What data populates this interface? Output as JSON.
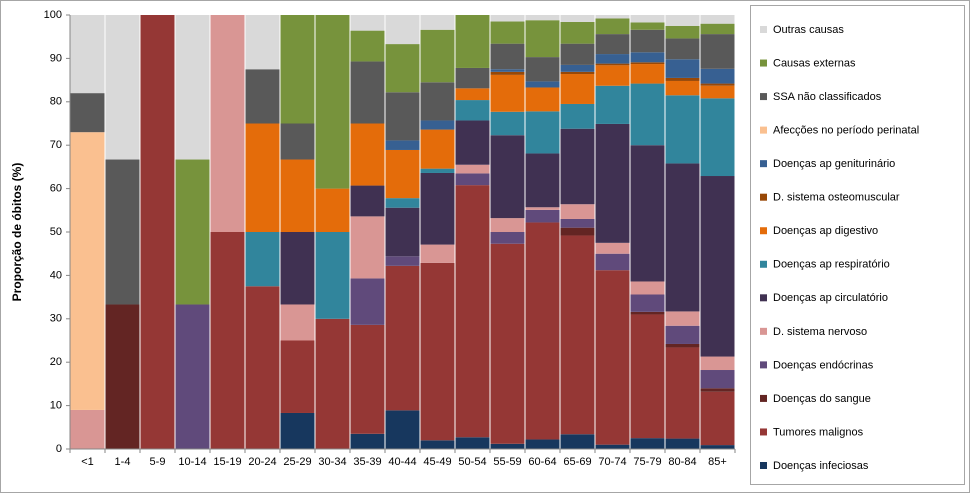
{
  "chart_data": {
    "type": "stacked_bar",
    "ylabel": "Proporção de óbitos (%)",
    "categories": [
      "<1",
      "1-4",
      "5-9",
      "10-14",
      "15-19",
      "20-24",
      "25-29",
      "30-34",
      "35-39",
      "40-44",
      "45-49",
      "50-54",
      "55-59",
      "60-64",
      "65-69",
      "70-74",
      "75-79",
      "80-84",
      "85+"
    ],
    "ylim": [
      0,
      100
    ],
    "yticks": [
      0,
      10,
      20,
      30,
      40,
      50,
      60,
      70,
      80,
      90,
      100
    ],
    "grid": false,
    "legend": "right",
    "series": [
      {
        "name": "Doenças infeciosas",
        "color": "#17375e",
        "values": [
          0,
          0,
          0,
          0,
          0,
          0,
          8.3,
          0,
          3.5,
          8.9,
          2,
          2.7,
          1.2,
          2.2,
          3.4,
          1,
          2.5,
          2.4,
          0.9
        ]
      },
      {
        "name": "Tumores malignos",
        "color": "#953735",
        "values": [
          0,
          0,
          100,
          0,
          50,
          37.5,
          16.7,
          30,
          25.1,
          33.3,
          40.9,
          58.1,
          46.1,
          50,
          45.8,
          40.2,
          28.5,
          21,
          12.3
        ]
      },
      {
        "name": "Doenças do sangue",
        "color": "#632523",
        "values": [
          0,
          33.3,
          0,
          0,
          0,
          0,
          0,
          0,
          0,
          0,
          0,
          0,
          0,
          0,
          1.8,
          0,
          0.6,
          0.8,
          0.8
        ]
      },
      {
        "name": "Doenças endócrinas",
        "color": "#604a7b",
        "values": [
          0,
          0,
          0,
          33.3,
          0,
          0,
          0,
          0,
          10.7,
          2.2,
          0,
          2.7,
          2.7,
          2.9,
          2,
          3.8,
          4,
          4.2,
          4.2
        ]
      },
      {
        "name": "D. sistema nervoso",
        "color": "#d99694",
        "values": [
          9,
          0,
          0,
          0,
          50,
          0,
          8.3,
          0,
          14.3,
          0,
          4.2,
          2,
          3.2,
          0.6,
          3.4,
          2.5,
          3,
          3.3,
          3.1
        ]
      },
      {
        "name": "Doenças ap circulatório",
        "color": "#403152",
        "values": [
          0,
          0,
          0,
          0,
          0,
          0,
          16.7,
          0,
          7.1,
          11.2,
          16.5,
          10.2,
          19.1,
          12.4,
          17.4,
          27.4,
          31.4,
          34.1,
          41.6
        ]
      },
      {
        "name": "Doenças ap respiratório",
        "color": "#31859c",
        "values": [
          0,
          0,
          0,
          0,
          0,
          12.5,
          0,
          20,
          0,
          2.2,
          1,
          4.7,
          5.4,
          9.7,
          5.7,
          8.8,
          14.2,
          15.7,
          17.9
        ]
      },
      {
        "name": "Doenças ap digestivo",
        "color": "#e46c0a",
        "values": [
          0,
          0,
          0,
          0,
          0,
          25,
          16.7,
          10,
          14.3,
          11.1,
          9,
          2.7,
          8.5,
          5.5,
          6.9,
          4.7,
          4.5,
          3.3,
          2.9
        ]
      },
      {
        "name": "D. sistema osteomuscular",
        "color": "#984807",
        "values": [
          0,
          0,
          0,
          0,
          0,
          0,
          0,
          0,
          0,
          0,
          0,
          0,
          0.7,
          0,
          0.5,
          0.4,
          0.4,
          0.7,
          0.5
        ]
      },
      {
        "name": "Doenças ap geniturinário",
        "color": "#376092",
        "values": [
          0,
          0,
          0,
          0,
          0,
          0,
          0,
          0,
          0,
          2.2,
          2.1,
          0,
          0.6,
          1.4,
          1.6,
          2.2,
          2.3,
          4.3,
          3.4
        ]
      },
      {
        "name": "Afecções no período perinatal",
        "color": "#fac090",
        "values": [
          64,
          0,
          0,
          0,
          0,
          0,
          0,
          0,
          0,
          0,
          0,
          0,
          0,
          0,
          0,
          0,
          0,
          0,
          0
        ]
      },
      {
        "name": "SSA não classificados",
        "color": "#595959",
        "values": [
          9,
          33.4,
          0,
          0,
          0,
          12.5,
          8.3,
          0,
          14.3,
          11.1,
          8.8,
          4.7,
          5.9,
          5.6,
          4.9,
          4.6,
          5.2,
          4.8,
          8
        ]
      },
      {
        "name": "Causas externas",
        "color": "#77933c",
        "values": [
          0,
          0,
          0,
          33.4,
          0,
          0,
          25,
          40,
          7.1,
          11.1,
          12.1,
          12.2,
          5.1,
          8.5,
          5,
          3.6,
          1.7,
          2.9,
          2.4
        ]
      },
      {
        "name": "Outras causas",
        "color": "#d9d9d9",
        "values": [
          18,
          33.3,
          0,
          33.3,
          0,
          12.5,
          0,
          0,
          3.6,
          6.7,
          3.4,
          0,
          1.5,
          1.2,
          1.6,
          0.8,
          1.7,
          2.5,
          2
        ]
      }
    ]
  }
}
